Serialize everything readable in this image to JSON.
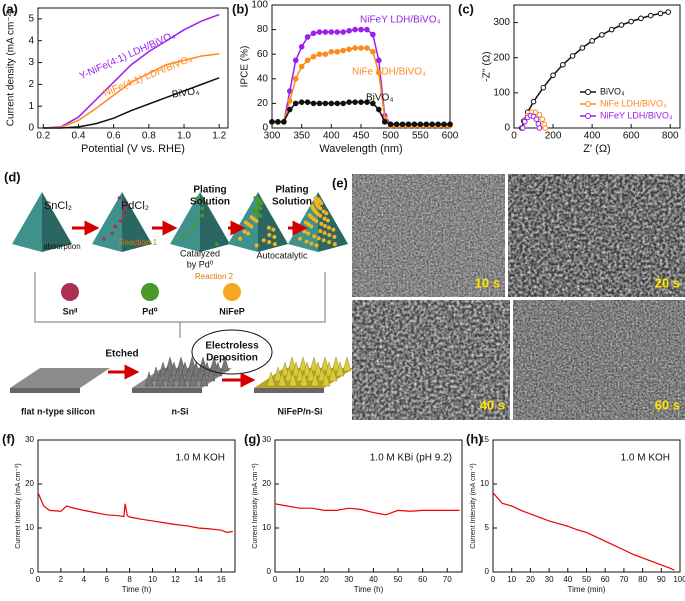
{
  "chart_data": [
    {
      "type": "line",
      "label": "(a)",
      "xlabel": "Potential (V vs. RHE)",
      "ylabel": "Current density (mA cm⁻²)",
      "x": [
        0.2,
        0.3,
        0.4,
        0.5,
        0.6,
        0.7,
        0.8,
        0.9,
        1.0,
        1.1,
        1.2
      ],
      "xlim": [
        0.17,
        1.25
      ],
      "xticks": [
        0.2,
        0.4,
        0.6,
        0.8,
        {
          "value": 1,
          "label": "1.0"
        },
        1.2
      ],
      "ylim": [
        0,
        5.5
      ],
      "yticks": [
        0,
        1,
        2,
        3,
        4,
        5
      ],
      "series": [
        {
          "name": "Y-NiFe(4:1) LDH/BiVO₄",
          "color": "#9b1ff0",
          "values": [
            0,
            0.05,
            0.5,
            1.3,
            2.1,
            2.9,
            3.5,
            4.0,
            4.5,
            4.9,
            5.2
          ]
        },
        {
          "name": "NiFe(4:1) LDH/BiVO₄",
          "color": "#ff8a1c",
          "values": [
            0,
            0.03,
            0.35,
            0.9,
            1.5,
            2.1,
            2.5,
            2.9,
            3.1,
            3.3,
            3.4
          ]
        },
        {
          "name": "BiVO₄",
          "color": "#111111",
          "values": [
            0,
            0,
            0.05,
            0.2,
            0.45,
            0.8,
            1.1,
            1.4,
            1.7,
            2.0,
            2.3
          ]
        }
      ]
    },
    {
      "type": "line",
      "markers": true,
      "label": "(b)",
      "xlabel": "Wavelength (nm)",
      "ylabel": "IPCE (%)",
      "x": [
        300,
        310,
        320,
        330,
        340,
        350,
        360,
        370,
        380,
        390,
        400,
        410,
        420,
        430,
        440,
        450,
        460,
        470,
        480,
        490,
        500,
        510,
        520,
        530,
        540,
        550,
        560,
        570,
        580,
        590,
        600
      ],
      "xlim": [
        300,
        600
      ],
      "xticks": [
        300,
        350,
        400,
        450,
        500,
        550,
        600
      ],
      "ylim": [
        0,
        100
      ],
      "yticks": [
        0,
        20,
        40,
        60,
        80,
        100
      ],
      "series": [
        {
          "name": "NiFeY LDH/BiVO₄",
          "color": "#9b1ff0",
          "values": [
            5,
            5,
            5,
            30,
            55,
            66,
            74,
            77,
            78,
            78,
            78,
            78,
            78,
            79,
            80,
            80,
            80,
            76,
            55,
            10,
            3,
            3,
            3,
            3,
            3,
            3,
            3,
            3,
            3,
            3,
            3
          ]
        },
        {
          "name": "NiFe LDH/BiVO₄",
          "color": "#ff8a1c",
          "values": [
            5,
            5,
            5,
            22,
            40,
            50,
            55,
            58,
            60,
            60,
            62,
            62,
            63,
            64,
            65,
            65,
            65,
            62,
            45,
            8,
            2,
            2,
            2,
            2,
            2,
            2,
            2,
            2,
            2,
            2,
            2
          ]
        },
        {
          "name": "BiVO₄",
          "color": "#111111",
          "values": [
            5,
            5,
            5,
            15,
            20,
            21,
            21,
            20,
            20,
            20,
            20,
            20,
            20,
            21,
            21,
            21,
            21,
            20,
            15,
            5,
            3,
            3,
            3,
            3,
            3,
            3,
            3,
            3,
            3,
            3,
            3
          ]
        }
      ]
    },
    {
      "type": "line",
      "markers": true,
      "legend": "lower right",
      "label": "(c)",
      "xlabel": "Z' (Ω)",
      "ylabel": "-Z'' (Ω)",
      "xlim": [
        0,
        850
      ],
      "xticks": [
        0,
        200,
        400,
        600,
        800
      ],
      "ylim": [
        0,
        350
      ],
      "yticks": [
        0,
        100,
        200,
        300
      ],
      "series": [
        {
          "name": "BiVO₄",
          "color": "#111111",
          "x": [
            40,
            50,
            70,
            100,
            150,
            200,
            250,
            300,
            350,
            400,
            450,
            500,
            550,
            600,
            650,
            700,
            750,
            790
          ],
          "values": [
            0,
            20,
            45,
            75,
            115,
            150,
            180,
            205,
            228,
            248,
            265,
            280,
            293,
            303,
            312,
            320,
            326,
            330
          ]
        },
        {
          "name": "NiFe LDH/BiVO₄",
          "color": "#ff8a1c",
          "x": [
            45,
            55,
            70,
            90,
            110,
            130,
            145,
            155,
            160
          ],
          "values": [
            0,
            20,
            35,
            45,
            45,
            38,
            25,
            10,
            0
          ]
        },
        {
          "name": "NiFeY LDH/BiVO₄",
          "color": "#9b1ff0",
          "x": [
            45,
            55,
            70,
            85,
            100,
            115,
            125,
            130
          ],
          "values": [
            0,
            18,
            30,
            35,
            33,
            25,
            12,
            0
          ]
        }
      ]
    },
    {
      "type": "line",
      "label": "(f)",
      "annotation": "1.0 M KOH",
      "xlabel": "Time (h)",
      "ylabel": "Current Intensity (mA cm⁻²)",
      "x": [
        0,
        0.5,
        1,
        2,
        2.5,
        3,
        4,
        5,
        6,
        7,
        7.5,
        7.6,
        7.8,
        8,
        9,
        10,
        11,
        12,
        13,
        14,
        15,
        16,
        16.5,
        17
      ],
      "xlim": [
        0,
        17.2
      ],
      "xticks": [
        0,
        2,
        4,
        6,
        8,
        10,
        12,
        14,
        16
      ],
      "ylim": [
        0,
        30
      ],
      "yticks": [
        0,
        10,
        20,
        30
      ],
      "series": [
        {
          "color": "#ee0000",
          "values": [
            18,
            15,
            14,
            13.8,
            15,
            14.6,
            14,
            13.5,
            13,
            12.8,
            12.6,
            15.5,
            12.8,
            12.5,
            12,
            11.6,
            11.2,
            10.8,
            10.5,
            10,
            9.8,
            9.5,
            9,
            9.2
          ]
        }
      ]
    },
    {
      "type": "line",
      "label": "(g)",
      "annotation": "1.0 M KBi (pH 9.2)",
      "xlabel": "Time (h)",
      "ylabel": "Current Intensity (mA cm⁻²)",
      "x": [
        0,
        5,
        10,
        15,
        20,
        25,
        30,
        35,
        40,
        45,
        50,
        55,
        60,
        65,
        70,
        75
      ],
      "xlim": [
        0,
        76
      ],
      "xticks": [
        0,
        10,
        20,
        30,
        40,
        50,
        60,
        70
      ],
      "ylim": [
        0,
        30
      ],
      "yticks": [
        0,
        10,
        20,
        30
      ],
      "series": [
        {
          "color": "#ee0000",
          "values": [
            15.5,
            15,
            14.5,
            14.5,
            14,
            14,
            14.5,
            14.2,
            13.5,
            13,
            14,
            13.8,
            14,
            14,
            14,
            14
          ]
        }
      ]
    },
    {
      "type": "line",
      "label": "(h)",
      "annotation": "1.0 M KOH",
      "xlabel": "Time (min)",
      "ylabel": "Current Intensity (mA cm⁻²)",
      "x": [
        0,
        5,
        10,
        15,
        20,
        25,
        30,
        35,
        40,
        45,
        50,
        55,
        60,
        65,
        70,
        75,
        80,
        85,
        90,
        95,
        97
      ],
      "xlim": [
        0,
        100
      ],
      "xticks": [
        0,
        10,
        20,
        30,
        40,
        50,
        60,
        70,
        80,
        90,
        100
      ],
      "ylim": [
        0,
        15
      ],
      "yticks": [
        0,
        5,
        10,
        15
      ],
      "series": [
        {
          "color": "#ee0000",
          "values": [
            9,
            7.8,
            7.5,
            7,
            6.6,
            6.2,
            5.8,
            5.5,
            5.2,
            4.8,
            4.5,
            4,
            3.5,
            3,
            2.5,
            2,
            1.6,
            1.2,
            0.8,
            0.4,
            0.2
          ]
        }
      ]
    }
  ],
  "diagram": {
    "label": "(d)",
    "reagents": [
      "SnCl₂",
      "PdCl₂"
    ],
    "plating": [
      "Plating",
      "Solution"
    ],
    "notes": [
      "absorption",
      "Reaction 1",
      "Catalyzed",
      "by Pd⁰",
      "Reaction 2",
      "Autocatalytic"
    ],
    "species": [
      "Snᴵᴵ",
      "Pd⁰",
      "NiFeP"
    ],
    "process": {
      "etch": "Etched",
      "deposition": [
        "Electroless",
        "Deposition"
      ]
    },
    "substrates": [
      "flat n-type silicon",
      "n-Si",
      "NiFeP/n-Si"
    ]
  },
  "sem_images": {
    "label": "(e)",
    "panels": [
      "10 s",
      "20 s",
      "40 s",
      "60 s"
    ]
  }
}
